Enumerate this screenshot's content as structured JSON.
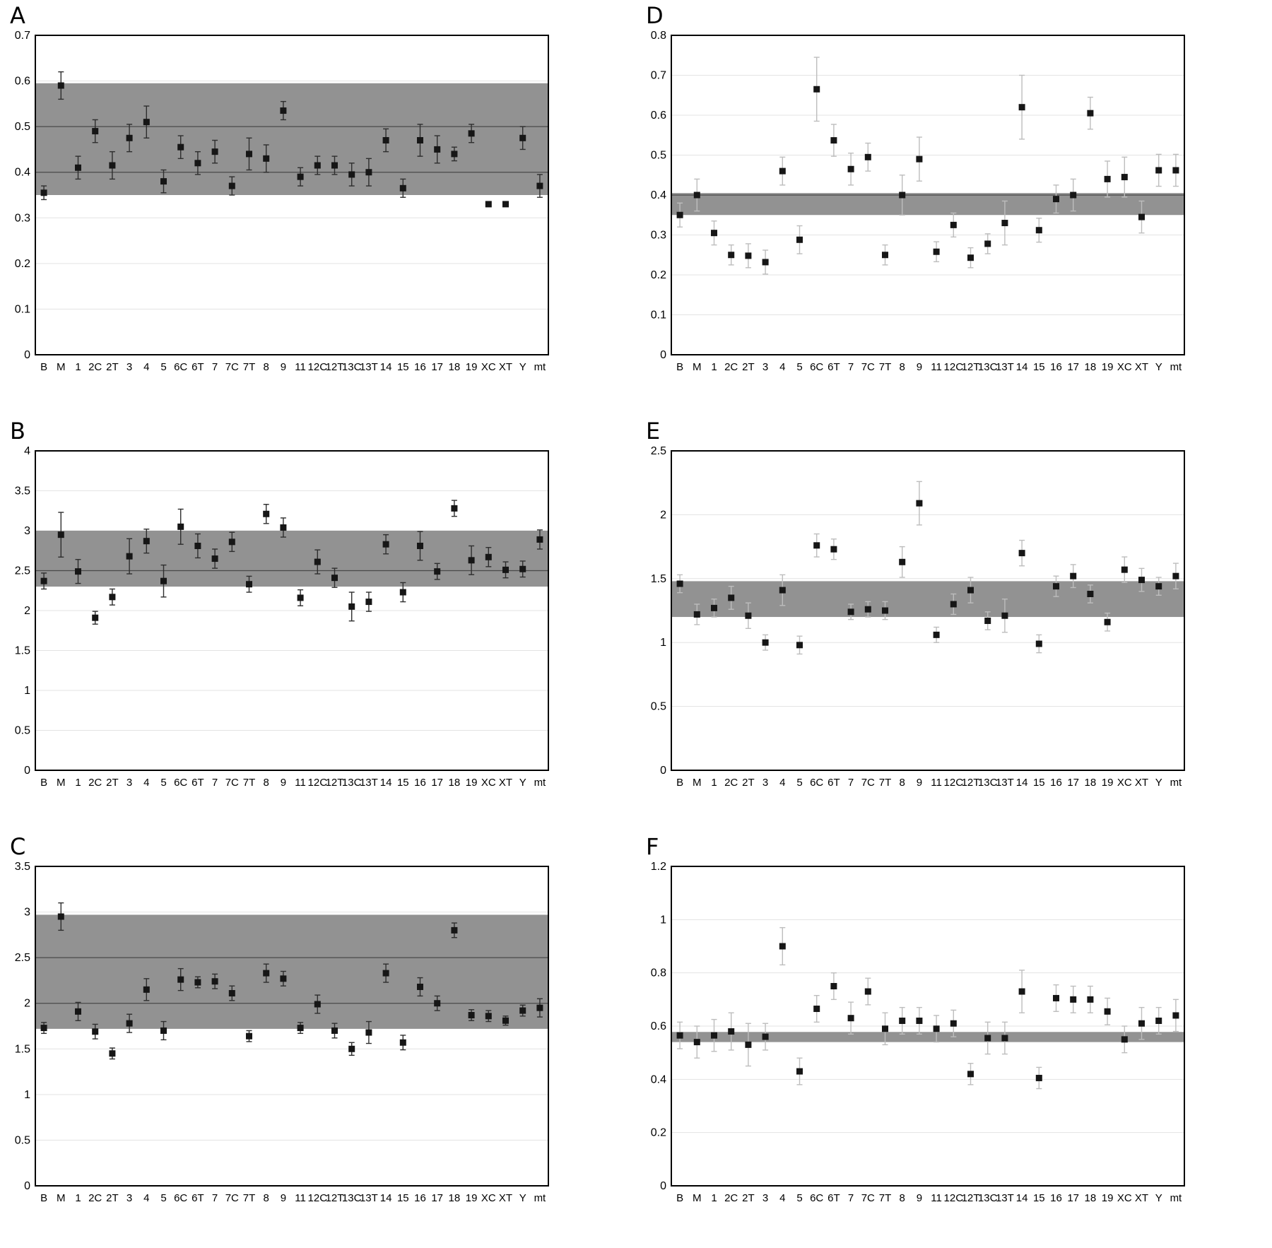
{
  "figure": {
    "panel_ids": [
      "A",
      "B",
      "C",
      "D",
      "E",
      "F"
    ]
  },
  "categories": [
    "B",
    "M",
    "1",
    "2C",
    "2T",
    "3",
    "4",
    "5",
    "6C",
    "6T",
    "7",
    "7C",
    "7T",
    "8",
    "9",
    "11",
    "12C",
    "12T",
    "13C",
    "13T",
    "14",
    "15",
    "16",
    "17",
    "18",
    "19",
    "XC",
    "XT",
    "Y",
    "mt"
  ],
  "style": {
    "band_color": "#929292",
    "marker_color": "#161616",
    "grid_color": "#e3e3e3",
    "axis_color": "#000000",
    "ref_line_color": "#4a4a4a",
    "background": "#ffffff"
  },
  "chart_data": [
    {
      "id": "A",
      "type": "scatter",
      "ylim": [
        0,
        0.7
      ],
      "yticks": [
        0,
        0.1,
        0.2,
        0.3,
        0.4,
        0.5,
        0.6,
        0.7
      ],
      "band": [
        0.35,
        0.595
      ],
      "ref_lines": [
        0.4,
        0.5
      ],
      "error_color": "#2e2e2e",
      "values": [
        0.355,
        0.59,
        0.41,
        0.49,
        0.415,
        0.475,
        0.51,
        0.38,
        0.455,
        0.42,
        0.445,
        0.37,
        0.44,
        0.43,
        0.535,
        0.39,
        0.415,
        0.415,
        0.395,
        0.4,
        0.47,
        0.365,
        0.47,
        0.45,
        0.44,
        0.485,
        0.33,
        0.33,
        0.475,
        0.37
      ],
      "errors": [
        0.015,
        0.03,
        0.025,
        0.025,
        0.03,
        0.03,
        0.035,
        0.025,
        0.025,
        0.025,
        0.025,
        0.02,
        0.035,
        0.03,
        0.02,
        0.02,
        0.02,
        0.02,
        0.025,
        0.03,
        0.025,
        0.02,
        0.035,
        0.03,
        0.015,
        0.02,
        0.004,
        0.004,
        0.025,
        0.025
      ]
    },
    {
      "id": "B",
      "type": "scatter",
      "ylim": [
        0,
        4
      ],
      "yticks": [
        0,
        0.5,
        1,
        1.5,
        2,
        2.5,
        3,
        3.5,
        4
      ],
      "band": [
        2.3,
        3.0
      ],
      "ref_lines": [
        2.5
      ],
      "error_color": "#2e2e2e",
      "values": [
        2.37,
        2.95,
        2.49,
        1.91,
        2.17,
        2.68,
        2.87,
        2.37,
        3.05,
        2.81,
        2.65,
        2.86,
        2.33,
        3.21,
        3.04,
        2.16,
        2.61,
        2.41,
        2.05,
        2.11,
        2.83,
        2.23,
        2.81,
        2.49,
        3.28,
        2.63,
        2.67,
        2.51,
        2.52,
        2.89
      ],
      "errors": [
        0.1,
        0.28,
        0.15,
        0.08,
        0.1,
        0.22,
        0.15,
        0.2,
        0.22,
        0.15,
        0.12,
        0.12,
        0.1,
        0.12,
        0.12,
        0.1,
        0.15,
        0.12,
        0.18,
        0.12,
        0.12,
        0.12,
        0.18,
        0.1,
        0.1,
        0.18,
        0.12,
        0.1,
        0.1,
        0.12
      ]
    },
    {
      "id": "C",
      "type": "scatter",
      "ylim": [
        0,
        3.5
      ],
      "yticks": [
        0,
        0.5,
        1,
        1.5,
        2,
        2.5,
        3,
        3.5
      ],
      "band": [
        1.72,
        2.97
      ],
      "ref_lines": [
        2.0,
        2.5
      ],
      "error_color": "#2e2e2e",
      "values": [
        1.73,
        2.95,
        1.91,
        1.69,
        1.45,
        1.78,
        2.15,
        1.7,
        2.26,
        2.23,
        2.24,
        2.11,
        1.64,
        2.33,
        2.27,
        1.73,
        1.99,
        1.7,
        1.5,
        1.68,
        2.33,
        1.57,
        2.18,
        2.0,
        2.8,
        1.87,
        1.86,
        1.81,
        1.92,
        1.95
      ],
      "errors": [
        0.06,
        0.15,
        0.1,
        0.08,
        0.06,
        0.1,
        0.12,
        0.1,
        0.12,
        0.06,
        0.08,
        0.08,
        0.06,
        0.1,
        0.08,
        0.06,
        0.1,
        0.08,
        0.07,
        0.12,
        0.1,
        0.08,
        0.1,
        0.08,
        0.08,
        0.06,
        0.06,
        0.05,
        0.06,
        0.1
      ]
    },
    {
      "id": "D",
      "type": "scatter",
      "ylim": [
        0,
        0.8
      ],
      "yticks": [
        0,
        0.1,
        0.2,
        0.3,
        0.4,
        0.5,
        0.6,
        0.7,
        0.8
      ],
      "band": [
        0.35,
        0.405
      ],
      "ref_lines": [
        0.4
      ],
      "error_color": "#bdbdbd",
      "values": [
        0.35,
        0.4,
        0.305,
        0.25,
        0.248,
        0.232,
        0.46,
        0.288,
        0.665,
        0.537,
        0.465,
        0.495,
        0.25,
        0.4,
        0.49,
        0.258,
        0.325,
        0.243,
        0.278,
        0.33,
        0.62,
        0.312,
        0.39,
        0.4,
        0.605,
        0.44,
        0.445,
        0.345,
        0.462,
        0.462
      ],
      "errors": [
        0.03,
        0.04,
        0.03,
        0.025,
        0.03,
        0.03,
        0.035,
        0.035,
        0.08,
        0.04,
        0.04,
        0.035,
        0.025,
        0.05,
        0.055,
        0.025,
        0.03,
        0.025,
        0.025,
        0.055,
        0.08,
        0.03,
        0.035,
        0.04,
        0.04,
        0.045,
        0.05,
        0.04,
        0.04,
        0.04
      ]
    },
    {
      "id": "E",
      "type": "scatter",
      "ylim": [
        0,
        2.5
      ],
      "yticks": [
        0,
        0.5,
        1,
        1.5,
        2,
        2.5
      ],
      "band": [
        1.2,
        1.48
      ],
      "ref_lines": [],
      "error_color": "#bdbdbd",
      "values": [
        1.46,
        1.22,
        1.27,
        1.35,
        1.21,
        1.0,
        1.41,
        0.98,
        1.76,
        1.73,
        1.24,
        1.26,
        1.25,
        1.63,
        2.09,
        1.06,
        1.3,
        1.41,
        1.17,
        1.21,
        1.7,
        0.99,
        1.44,
        1.52,
        1.38,
        1.16,
        1.57,
        1.49,
        1.44,
        1.52
      ],
      "errors": [
        0.07,
        0.08,
        0.07,
        0.09,
        0.1,
        0.06,
        0.12,
        0.07,
        0.09,
        0.08,
        0.06,
        0.06,
        0.07,
        0.12,
        0.17,
        0.06,
        0.08,
        0.1,
        0.07,
        0.13,
        0.1,
        0.07,
        0.08,
        0.09,
        0.07,
        0.07,
        0.1,
        0.09,
        0.07,
        0.1
      ]
    },
    {
      "id": "F",
      "type": "scatter",
      "ylim": [
        0,
        1.2
      ],
      "yticks": [
        0,
        0.2,
        0.4,
        0.6,
        0.8,
        1,
        1.2
      ],
      "band": [
        0.54,
        0.578
      ],
      "ref_lines": [],
      "error_color": "#bdbdbd",
      "values": [
        0.565,
        0.54,
        0.565,
        0.58,
        0.53,
        0.56,
        0.9,
        0.43,
        0.665,
        0.75,
        0.63,
        0.73,
        0.59,
        0.62,
        0.62,
        0.59,
        0.61,
        0.42,
        0.555,
        0.555,
        0.73,
        0.405,
        0.705,
        0.7,
        0.7,
        0.655,
        0.55,
        0.61,
        0.62,
        0.64
      ],
      "errors": [
        0.05,
        0.06,
        0.06,
        0.07,
        0.08,
        0.05,
        0.07,
        0.05,
        0.05,
        0.05,
        0.06,
        0.05,
        0.06,
        0.05,
        0.05,
        0.05,
        0.05,
        0.04,
        0.06,
        0.06,
        0.08,
        0.04,
        0.05,
        0.05,
        0.05,
        0.05,
        0.05,
        0.06,
        0.05,
        0.06
      ]
    }
  ]
}
